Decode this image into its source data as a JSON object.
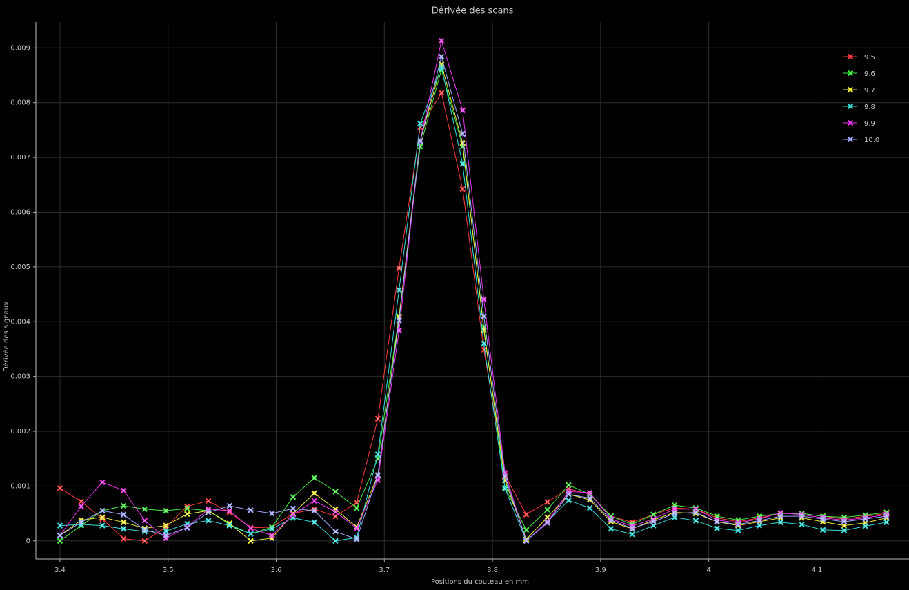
{
  "chart_data": {
    "type": "line",
    "title": "Dérivée des scans",
    "x_label": "Positions du couteau en mm",
    "y_label": "Dérivée des signaux",
    "x": [
      3.4,
      3.4196,
      3.4392,
      3.4588,
      3.4784,
      3.498,
      3.5176,
      3.5372,
      3.5568,
      3.5764,
      3.596,
      3.6156,
      3.6352,
      3.6548,
      3.6744,
      3.694,
      3.7136,
      3.7332,
      3.7528,
      3.7724,
      3.792,
      3.8116,
      3.8312,
      3.8508,
      3.8704,
      3.89,
      3.9096,
      3.9292,
      3.9488,
      3.9684,
      3.988,
      4.0076,
      4.0272,
      4.0468,
      4.0664,
      4.086,
      4.1056,
      4.1252,
      4.1448,
      4.1644
    ],
    "series": [
      {
        "name": "9.5",
        "color": "#ff3a3a",
        "values": [
          0.00096,
          0.00072,
          0.0004,
          4e-05,
          0.0,
          0.00025,
          0.00063,
          0.00073,
          0.00052,
          0.00024,
          0.00025,
          0.0005,
          0.00058,
          0.00045,
          0.0007,
          0.00223,
          0.00498,
          0.00755,
          0.00818,
          0.00642,
          0.00349,
          0.0012,
          0.00048,
          0.00071,
          0.00095,
          0.00085,
          0.00045,
          0.00034,
          0.00048,
          0.0006,
          0.00058,
          0.00042,
          0.00035,
          0.00042,
          0.0005,
          0.0005,
          0.00045,
          0.0004,
          0.00045,
          0.0005
        ]
      },
      {
        "name": "9.6",
        "color": "#44ee44",
        "values": [
          0.0,
          0.00028,
          0.00055,
          0.00064,
          0.00058,
          0.00055,
          0.00059,
          0.00055,
          0.0003,
          0.00013,
          0.00025,
          0.0008,
          0.00115,
          0.0009,
          0.0006,
          0.0015,
          0.0041,
          0.0072,
          0.0086,
          0.0072,
          0.0039,
          0.00097,
          0.0002,
          0.00057,
          0.00102,
          0.00085,
          0.00045,
          0.0003,
          0.00048,
          0.00065,
          0.0006,
          0.00045,
          0.00038,
          0.00045,
          0.0005,
          0.0005,
          0.00045,
          0.00043,
          0.00047,
          0.00052
        ]
      },
      {
        "name": "9.7",
        "color": "#eeee33",
        "values": [
          0.0001,
          0.00038,
          0.00043,
          0.00034,
          0.00023,
          0.00028,
          0.00049,
          0.00055,
          0.00032,
          0.0,
          5e-05,
          0.0005,
          0.00087,
          0.00058,
          0.00025,
          0.0012,
          0.00408,
          0.0073,
          0.0087,
          0.00726,
          0.00385,
          0.0011,
          3e-05,
          0.00043,
          0.00085,
          0.00075,
          0.00035,
          0.00022,
          0.00038,
          0.00052,
          0.0005,
          0.00035,
          0.00028,
          0.00035,
          0.00042,
          0.00042,
          0.00035,
          0.00028,
          0.00033,
          0.00042
        ]
      },
      {
        "name": "9.8",
        "color": "#33dddd",
        "values": [
          0.00028,
          0.0003,
          0.00028,
          0.00022,
          0.00017,
          0.00018,
          0.00031,
          0.00037,
          0.00028,
          0.00013,
          0.00022,
          0.00042,
          0.00034,
          0.0,
          6e-05,
          0.00158,
          0.00458,
          0.00762,
          0.00865,
          0.00688,
          0.0036,
          0.00095,
          0.0,
          0.00035,
          0.00074,
          0.0006,
          0.00022,
          0.00012,
          0.00028,
          0.00043,
          0.00037,
          0.00023,
          0.00019,
          0.00028,
          0.00034,
          0.0003,
          0.0002,
          0.00019,
          0.00027,
          0.00034
        ]
      },
      {
        "name": "9.9",
        "color": "#ee33ee",
        "values": [
          0.0001,
          0.00063,
          0.00107,
          0.00092,
          0.00037,
          5e-05,
          0.00025,
          0.00058,
          0.00055,
          0.00023,
          0.0001,
          0.00048,
          0.00073,
          0.00053,
          0.00023,
          0.00111,
          0.00384,
          0.0073,
          0.00913,
          0.00786,
          0.00441,
          0.00124,
          0.0,
          0.00035,
          0.0009,
          0.00088,
          0.0004,
          0.00027,
          0.0004,
          0.00058,
          0.00058,
          0.00038,
          0.00033,
          0.0004,
          0.00051,
          0.00048,
          0.00042,
          0.00038,
          0.00042,
          0.00048
        ]
      },
      {
        "name": "10.0",
        "color": "#a0a8ff",
        "values": [
          0.0001,
          0.00034,
          0.00055,
          0.00048,
          0.0002,
          0.0001,
          0.00024,
          0.00052,
          0.00064,
          0.00056,
          0.0005,
          0.00059,
          0.00055,
          0.00017,
          3e-05,
          0.0012,
          0.00402,
          0.0073,
          0.00884,
          0.00743,
          0.0041,
          0.00117,
          0.0,
          0.00033,
          0.00085,
          0.00078,
          0.00038,
          0.00023,
          0.00035,
          0.0005,
          0.00052,
          0.00035,
          0.0003,
          0.00037,
          0.00045,
          0.00045,
          0.0004,
          0.00035,
          0.0004,
          0.00045
        ]
      }
    ],
    "xlim": [
      3.3777,
      4.1852
    ],
    "xticks": [
      3.4,
      3.5,
      3.6,
      3.7,
      3.8,
      3.9,
      4,
      4.1
    ],
    "ylim": [
      -0.00033,
      0.00947
    ],
    "yticks": [
      0,
      0.001,
      0.002,
      0.003,
      0.004,
      0.005,
      0.006,
      0.007,
      0.008,
      0.009
    ],
    "grid": true,
    "legend": "upper right"
  }
}
